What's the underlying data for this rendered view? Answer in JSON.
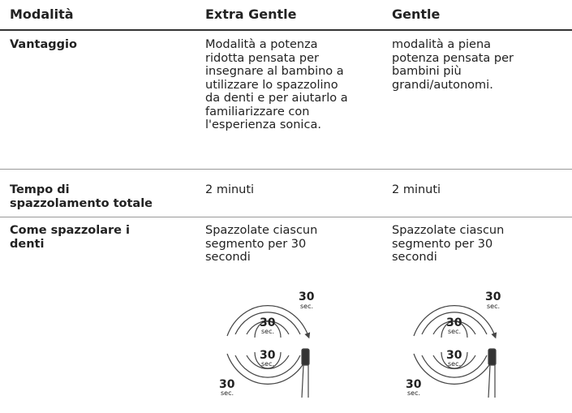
{
  "table": {
    "header": [
      "Modalità",
      "Extra Gentle",
      "Gentle"
    ],
    "rows": [
      [
        [
          "Vantaggio"
        ],
        [
          "Modalità a potenza",
          "ridotta pensata per",
          "insegnare al bambino a",
          "utilizzare lo spazzolino",
          "da denti e per aiutarlo a",
          "familiarizzare con",
          "l'esperienza sonica."
        ],
        [
          "modalità a piena",
          "potenza pensata per",
          "bambini più",
          "grandi/autonomi."
        ]
      ],
      [
        [
          "Tempo di",
          "spazzolamento totale"
        ],
        [
          "2 minuti"
        ],
        [
          "2 minuti"
        ]
      ],
      [
        [
          "Come spazzolare i",
          "denti"
        ],
        [
          "Spazzolate ciascun",
          "segmento per 30",
          "secondi"
        ],
        [
          "Spazzolate ciascun",
          "segmento per 30",
          "secondi"
        ]
      ]
    ]
  },
  "diagram_label": {
    "number": "30",
    "unit": "sec."
  }
}
